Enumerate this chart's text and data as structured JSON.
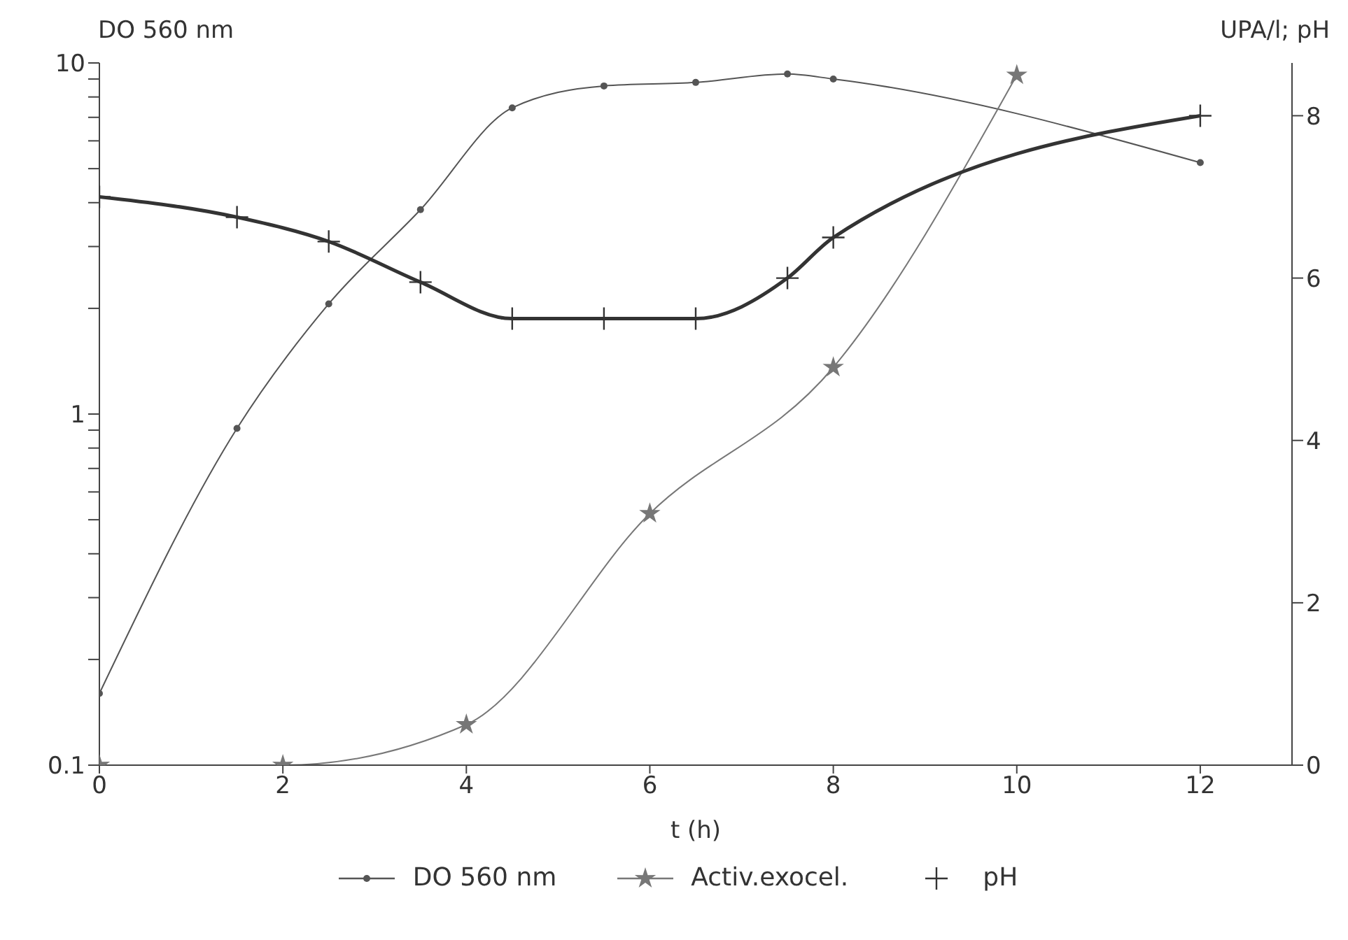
{
  "chart_data": {
    "type": "line",
    "ylabel": "DO 560 nm",
    "y2label": "UPA/l; pH",
    "xlabel": "t (h)",
    "xlim": [
      0,
      13
    ],
    "xticks": [
      0,
      2,
      4,
      6,
      8,
      10,
      12
    ],
    "ylim": [
      0.1,
      10
    ],
    "yticks": [
      0.1,
      {
        "value": 0.2,
        "label": null
      },
      {
        "value": 0.3,
        "label": null
      },
      {
        "value": 0.4,
        "label": null
      },
      {
        "value": 0.5,
        "label": null
      },
      {
        "value": 0.6,
        "label": null
      },
      {
        "value": 0.7,
        "label": null
      },
      {
        "value": 0.8,
        "label": null
      },
      {
        "value": 0.9,
        "label": null
      },
      1,
      {
        "value": 2,
        "label": null
      },
      {
        "value": 3,
        "label": null
      },
      {
        "value": 4,
        "label": null
      },
      {
        "value": 5,
        "label": null
      },
      {
        "value": 6,
        "label": null
      },
      {
        "value": 7,
        "label": null
      },
      {
        "value": 8,
        "label": null
      },
      {
        "value": 9,
        "label": null
      },
      10
    ],
    "y2lim": [
      0,
      8.65
    ],
    "y2ticks": [
      0,
      2,
      4,
      6,
      8
    ],
    "log": "y",
    "legend": "bottom",
    "series": [
      {
        "name": "DO 560 nm",
        "color": "#555555",
        "marker": "circle",
        "x": [
          0,
          1.5,
          2.5,
          3.5,
          4.5,
          5.5,
          6.5,
          7.5,
          8,
          12
        ],
        "values": [
          0.16,
          0.91,
          2.06,
          3.82,
          7.45,
          8.6,
          8.8,
          9.3,
          9.0,
          5.2
        ]
      },
      {
        "name": "Activ.exocel.",
        "color": "#777777",
        "marker": "star",
        "axis": "y2",
        "x": [
          0,
          2,
          4,
          6,
          8,
          10
        ],
        "values": [
          0,
          0,
          0.5,
          3.1,
          4.9,
          8.5
        ]
      },
      {
        "name": "pH",
        "color": "#333333",
        "marker": "cross",
        "axis": "y2",
        "x": [
          0,
          1.5,
          2.5,
          3.5,
          4.5,
          5.5,
          6.5,
          7.5,
          8,
          12
        ],
        "values": [
          7.0,
          6.75,
          6.45,
          5.95,
          5.5,
          5.5,
          5.5,
          6.0,
          6.5,
          8.0
        ]
      }
    ]
  }
}
